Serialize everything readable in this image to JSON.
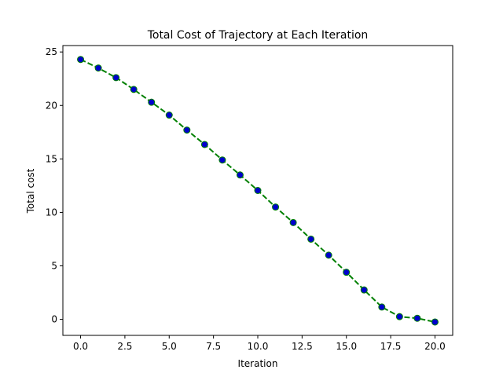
{
  "chart_data": {
    "type": "line",
    "title": "Total Cost of Trajectory at Each Iteration",
    "xlabel": "Iteration",
    "ylabel": "Total cost",
    "xlim": [
      -1.0,
      21.0
    ],
    "ylim": [
      -1.5,
      25.6
    ],
    "xticks": [
      0,
      2.5,
      5,
      7.5,
      10,
      12.5,
      15,
      17.5,
      20
    ],
    "xtick_labels": [
      "0.0",
      "2.5",
      "5.0",
      "7.5",
      "10.0",
      "12.5",
      "15.0",
      "17.5",
      "20.0"
    ],
    "yticks": [
      0,
      5,
      10,
      15,
      20,
      25
    ],
    "ytick_labels": [
      "0",
      "5",
      "10",
      "15",
      "20",
      "25"
    ],
    "grid": false,
    "legend": false,
    "series": [
      {
        "x": [
          0,
          1,
          2,
          3,
          4,
          5,
          6,
          7,
          8,
          9,
          10,
          11,
          12,
          13,
          14,
          15,
          16,
          17,
          18,
          19,
          20
        ],
        "values": [
          24.3,
          23.5,
          22.6,
          21.5,
          20.3,
          19.1,
          17.7,
          16.35,
          14.9,
          13.5,
          12.05,
          10.5,
          9.05,
          7.5,
          6.0,
          4.4,
          2.75,
          1.15,
          0.25,
          0.1,
          -0.25
        ],
        "line_color": "#008000",
        "line_style": "dashed",
        "marker": "circle",
        "marker_face": "#0000cc",
        "marker_edge": "#008000"
      }
    ]
  }
}
